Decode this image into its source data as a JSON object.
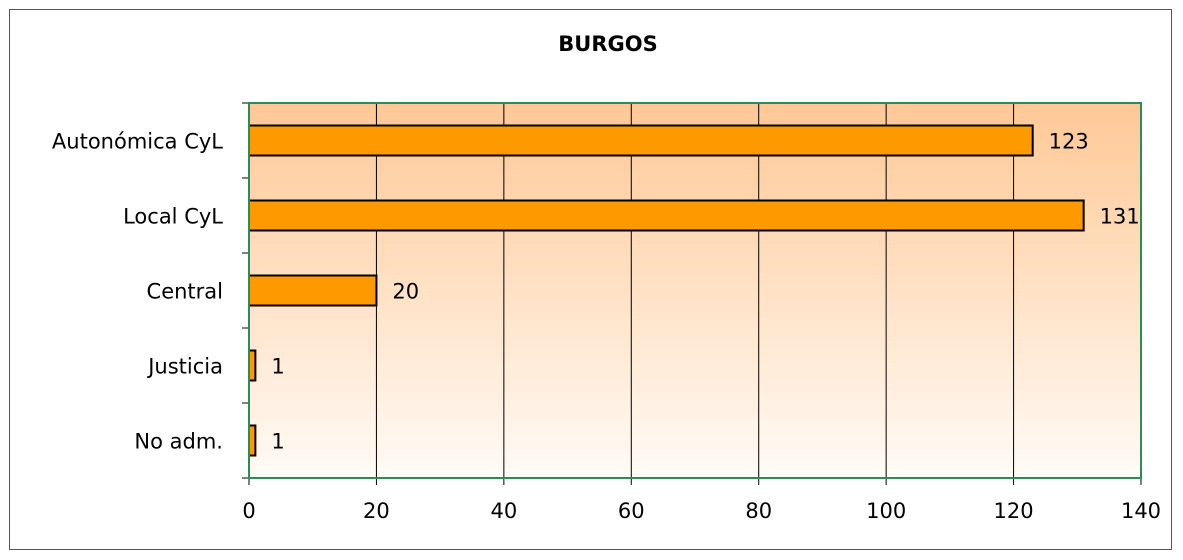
{
  "chart_data": {
    "type": "bar",
    "orientation": "horizontal",
    "title": "BURGOS",
    "categories": [
      "Autonómica CyL",
      "Local CyL",
      "Central",
      "Justicia",
      "No adm."
    ],
    "values": [
      123,
      131,
      20,
      1,
      1
    ],
    "xlim": [
      0,
      140
    ],
    "xticks": [
      0,
      20,
      40,
      60,
      80,
      100,
      120,
      140
    ],
    "xlabel": "",
    "ylabel": "",
    "grid": "vertical",
    "legend": "none",
    "colors": {
      "bar": "#ff9900",
      "bar_stroke": "#000000",
      "plot_border": "#2e8b57",
      "grid": "#000000",
      "bg_top": "#ffc896",
      "bg_bottom": "#fffbf6"
    }
  }
}
